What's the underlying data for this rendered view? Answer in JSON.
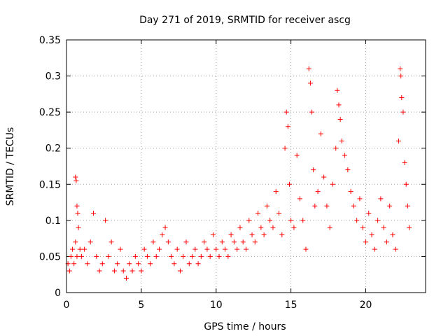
{
  "chart_data": {
    "type": "scatter",
    "title": "Day 271 of 2019, SRMTID for receiver ascg",
    "xlabel": "GPS time / hours",
    "ylabel": "SRMTID / TECUs",
    "xlim": [
      0,
      24
    ],
    "ylim": [
      0,
      0.35
    ],
    "xticks": [
      0,
      5,
      10,
      15,
      20
    ],
    "xtick_labels": [
      "0",
      "5",
      "10",
      "15",
      "20"
    ],
    "yticks": [
      0,
      0.05,
      0.1,
      0.15,
      0.2,
      0.25,
      0.3,
      0.35
    ],
    "ytick_labels": [
      "0",
      "0.05",
      "0.1",
      "0.15",
      "0.2",
      "0.25",
      "0.3",
      "0.35"
    ],
    "grid": true,
    "marker": "+",
    "series": [
      {
        "name": "SRMTID",
        "color": "#ff0000",
        "points": [
          [
            0.1,
            0.04
          ],
          [
            0.2,
            0.03
          ],
          [
            0.3,
            0.05
          ],
          [
            0.4,
            0.06
          ],
          [
            0.5,
            0.04
          ],
          [
            0.6,
            0.07
          ],
          [
            0.7,
            0.05
          ],
          [
            0.8,
            0.09
          ],
          [
            0.9,
            0.06
          ],
          [
            1.0,
            0.05
          ],
          [
            0.6,
            0.16
          ],
          [
            0.65,
            0.155
          ],
          [
            0.7,
            0.12
          ],
          [
            0.75,
            0.11
          ],
          [
            1.2,
            0.06
          ],
          [
            1.4,
            0.04
          ],
          [
            1.6,
            0.07
          ],
          [
            1.8,
            0.11
          ],
          [
            2.0,
            0.05
          ],
          [
            2.2,
            0.03
          ],
          [
            2.4,
            0.04
          ],
          [
            2.6,
            0.1
          ],
          [
            2.8,
            0.05
          ],
          [
            3.0,
            0.07
          ],
          [
            3.2,
            0.03
          ],
          [
            3.4,
            0.04
          ],
          [
            3.6,
            0.06
          ],
          [
            3.8,
            0.03
          ],
          [
            4.0,
            0.02
          ],
          [
            4.2,
            0.04
          ],
          [
            4.4,
            0.03
          ],
          [
            4.6,
            0.05
          ],
          [
            4.8,
            0.04
          ],
          [
            5.0,
            0.03
          ],
          [
            5.2,
            0.06
          ],
          [
            5.4,
            0.05
          ],
          [
            5.6,
            0.04
          ],
          [
            5.8,
            0.07
          ],
          [
            6.0,
            0.05
          ],
          [
            6.2,
            0.06
          ],
          [
            6.4,
            0.08
          ],
          [
            6.6,
            0.09
          ],
          [
            6.8,
            0.07
          ],
          [
            7.0,
            0.05
          ],
          [
            7.2,
            0.04
          ],
          [
            7.4,
            0.06
          ],
          [
            7.6,
            0.03
          ],
          [
            7.8,
            0.05
          ],
          [
            8.0,
            0.07
          ],
          [
            8.2,
            0.04
          ],
          [
            8.4,
            0.05
          ],
          [
            8.6,
            0.06
          ],
          [
            8.8,
            0.04
          ],
          [
            9.0,
            0.05
          ],
          [
            9.2,
            0.07
          ],
          [
            9.4,
            0.06
          ],
          [
            9.6,
            0.05
          ],
          [
            9.8,
            0.08
          ],
          [
            10.0,
            0.06
          ],
          [
            10.2,
            0.05
          ],
          [
            10.4,
            0.07
          ],
          [
            10.6,
            0.06
          ],
          [
            10.8,
            0.05
          ],
          [
            11.0,
            0.08
          ],
          [
            11.2,
            0.07
          ],
          [
            11.4,
            0.06
          ],
          [
            11.6,
            0.09
          ],
          [
            11.8,
            0.07
          ],
          [
            12.0,
            0.06
          ],
          [
            12.2,
            0.1
          ],
          [
            12.4,
            0.08
          ],
          [
            12.6,
            0.07
          ],
          [
            12.8,
            0.11
          ],
          [
            13.0,
            0.09
          ],
          [
            13.2,
            0.08
          ],
          [
            13.4,
            0.12
          ],
          [
            13.6,
            0.1
          ],
          [
            13.8,
            0.09
          ],
          [
            14.0,
            0.14
          ],
          [
            14.2,
            0.11
          ],
          [
            14.4,
            0.08
          ],
          [
            14.6,
            0.2
          ],
          [
            14.7,
            0.25
          ],
          [
            14.8,
            0.23
          ],
          [
            14.9,
            0.15
          ],
          [
            15.0,
            0.1
          ],
          [
            15.2,
            0.09
          ],
          [
            15.4,
            0.19
          ],
          [
            15.6,
            0.13
          ],
          [
            15.8,
            0.1
          ],
          [
            16.0,
            0.06
          ],
          [
            16.2,
            0.31
          ],
          [
            16.3,
            0.29
          ],
          [
            16.4,
            0.25
          ],
          [
            16.5,
            0.17
          ],
          [
            16.6,
            0.12
          ],
          [
            16.8,
            0.14
          ],
          [
            17.0,
            0.22
          ],
          [
            17.2,
            0.16
          ],
          [
            17.4,
            0.12
          ],
          [
            17.6,
            0.09
          ],
          [
            17.8,
            0.15
          ],
          [
            18.0,
            0.2
          ],
          [
            18.1,
            0.28
          ],
          [
            18.2,
            0.26
          ],
          [
            18.3,
            0.24
          ],
          [
            18.4,
            0.21
          ],
          [
            18.6,
            0.19
          ],
          [
            18.8,
            0.17
          ],
          [
            19.0,
            0.14
          ],
          [
            19.2,
            0.12
          ],
          [
            19.4,
            0.1
          ],
          [
            19.6,
            0.13
          ],
          [
            19.8,
            0.09
          ],
          [
            20.0,
            0.07
          ],
          [
            20.2,
            0.11
          ],
          [
            20.4,
            0.08
          ],
          [
            20.6,
            0.06
          ],
          [
            20.8,
            0.1
          ],
          [
            21.0,
            0.13
          ],
          [
            21.2,
            0.09
          ],
          [
            21.4,
            0.07
          ],
          [
            21.6,
            0.12
          ],
          [
            21.8,
            0.08
          ],
          [
            22.0,
            0.06
          ],
          [
            22.2,
            0.21
          ],
          [
            22.3,
            0.31
          ],
          [
            22.35,
            0.3
          ],
          [
            22.4,
            0.27
          ],
          [
            22.5,
            0.25
          ],
          [
            22.6,
            0.18
          ],
          [
            22.7,
            0.15
          ],
          [
            22.8,
            0.12
          ],
          [
            22.9,
            0.09
          ]
        ]
      }
    ]
  }
}
